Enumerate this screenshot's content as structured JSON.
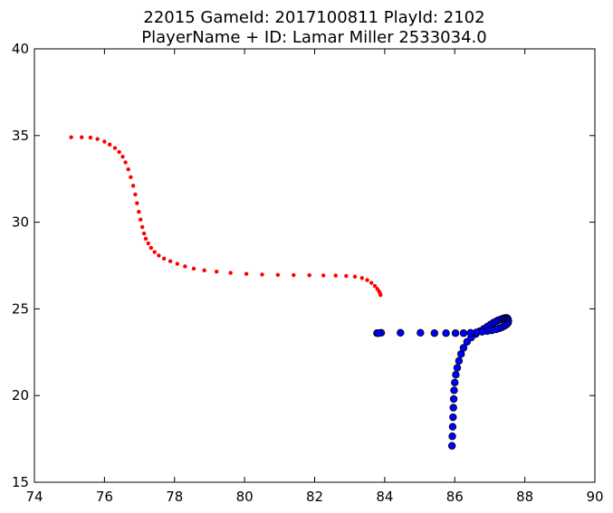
{
  "chart_data": {
    "type": "scatter",
    "title": "22015 GameId: 2017100811 PlayId: 2102",
    "subtitle": "PlayerName + ID: Lamar Miller 2533034.0",
    "xlabel": "",
    "ylabel": "",
    "xlim": [
      74,
      90
    ],
    "ylim": [
      15,
      40
    ],
    "xticks": [
      "74",
      "76",
      "78",
      "80",
      "82",
      "84",
      "86",
      "88",
      "90"
    ],
    "yticks": [
      "15",
      "20",
      "25",
      "30",
      "35",
      "40"
    ],
    "grid": false,
    "legend": "none",
    "series": [
      {
        "color": "#ff0000",
        "marker": "small-dot",
        "x": [
          75.05,
          75.35,
          75.6,
          75.8,
          76.0,
          76.15,
          76.3,
          76.42,
          76.52,
          76.6,
          76.68,
          76.75,
          76.82,
          76.88,
          76.93,
          76.98,
          77.03,
          77.08,
          77.13,
          77.18,
          77.25,
          77.33,
          77.43,
          77.55,
          77.7,
          77.88,
          78.08,
          78.3,
          78.55,
          78.85,
          79.2,
          79.6,
          80.05,
          80.5,
          80.95,
          81.4,
          81.85,
          82.25,
          82.6,
          82.9,
          83.15,
          83.35,
          83.5,
          83.62,
          83.72,
          83.79,
          83.84,
          83.87,
          83.88
        ],
        "y": [
          34.9,
          34.9,
          34.88,
          34.8,
          34.65,
          34.48,
          34.28,
          34.05,
          33.78,
          33.45,
          33.05,
          32.6,
          32.1,
          31.6,
          31.1,
          30.6,
          30.15,
          29.72,
          29.35,
          29.05,
          28.78,
          28.52,
          28.28,
          28.08,
          27.9,
          27.75,
          27.6,
          27.45,
          27.32,
          27.22,
          27.15,
          27.08,
          27.02,
          26.98,
          26.96,
          26.95,
          26.94,
          26.93,
          26.92,
          26.9,
          26.86,
          26.78,
          26.66,
          26.5,
          26.32,
          26.15,
          26.0,
          25.88,
          25.8
        ]
      },
      {
        "color": "#0000ff",
        "marker": "circle",
        "x": [
          85.92,
          85.93,
          85.94,
          85.95,
          85.96,
          85.97,
          85.98,
          86.0,
          86.03,
          86.07,
          86.12,
          86.18,
          86.25,
          86.35,
          86.47,
          86.6,
          86.72,
          86.83,
          86.93,
          87.02,
          87.1,
          87.18,
          87.25,
          87.32,
          87.38,
          87.43,
          87.47,
          87.5,
          87.52,
          87.53,
          87.52,
          87.48,
          87.42,
          87.35,
          87.27,
          87.18,
          87.06,
          86.93,
          86.78,
          86.62,
          86.45,
          86.25,
          86.02,
          85.75,
          85.42,
          85.02,
          84.45,
          83.9,
          83.78,
          83.82
        ],
        "y": [
          17.1,
          17.65,
          18.2,
          18.75,
          19.3,
          19.8,
          20.3,
          20.75,
          21.2,
          21.6,
          22.0,
          22.4,
          22.75,
          23.1,
          23.35,
          23.55,
          23.72,
          23.85,
          23.98,
          24.1,
          24.2,
          24.28,
          24.35,
          24.4,
          24.44,
          24.47,
          24.48,
          24.46,
          24.4,
          24.3,
          24.2,
          24.1,
          24.02,
          23.94,
          23.88,
          23.82,
          23.76,
          23.72,
          23.68,
          23.65,
          23.62,
          23.6,
          23.6,
          23.6,
          23.6,
          23.62,
          23.62,
          23.62,
          23.6,
          23.6
        ]
      }
    ]
  }
}
